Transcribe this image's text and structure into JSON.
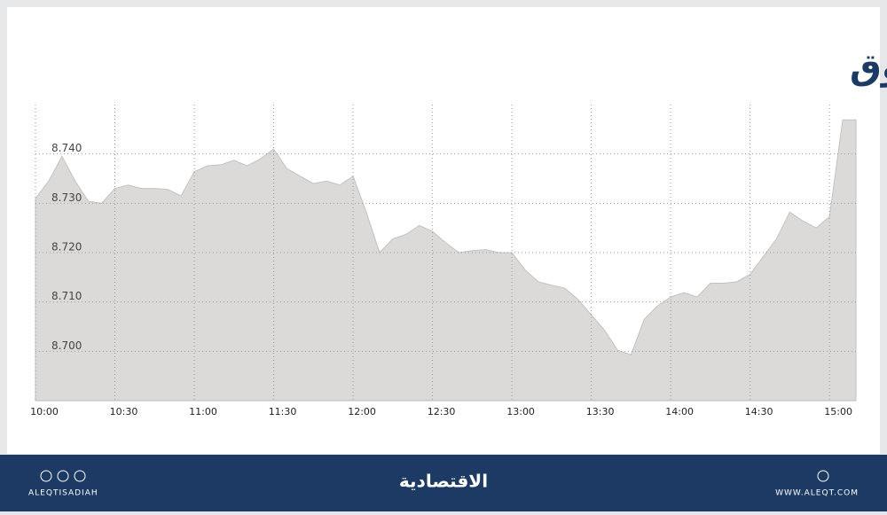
{
  "chart_data": {
    "type": "area",
    "title": "مؤشر السوق",
    "x": [
      "10:00",
      "10:05",
      "10:10",
      "10:15",
      "10:20",
      "10:25",
      "10:30",
      "10:35",
      "10:40",
      "10:45",
      "10:50",
      "10:55",
      "11:00",
      "11:05",
      "11:10",
      "11:15",
      "11:20",
      "11:25",
      "11:30",
      "11:35",
      "11:40",
      "11:45",
      "11:50",
      "11:55",
      "12:00",
      "12:05",
      "12:10",
      "12:15",
      "12:20",
      "12:25",
      "12:30",
      "12:35",
      "12:40",
      "12:45",
      "12:50",
      "12:55",
      "13:00",
      "13:05",
      "13:10",
      "13:15",
      "13:20",
      "13:25",
      "13:30",
      "13:35",
      "13:40",
      "13:45",
      "13:50",
      "13:55",
      "14:00",
      "14:05",
      "14:10",
      "14:15",
      "14:20",
      "14:25",
      "14:30",
      "14:35",
      "14:40",
      "14:45",
      "14:50",
      "14:55",
      "15:00",
      "15:05",
      "15:10"
    ],
    "values": [
      8.731,
      8.7345,
      8.7395,
      8.7345,
      8.7304,
      8.73,
      8.733,
      8.7337,
      8.733,
      8.733,
      8.7328,
      8.7315,
      8.7364,
      8.7376,
      8.7378,
      8.7387,
      8.7376,
      8.739,
      8.741,
      8.737,
      8.7355,
      8.734,
      8.7345,
      8.7337,
      8.7355,
      8.7282,
      8.72,
      8.7228,
      8.7237,
      8.7255,
      8.7243,
      8.722,
      8.72,
      8.7204,
      8.7206,
      8.72,
      8.72,
      8.7165,
      8.7141,
      8.7134,
      8.7128,
      8.7105,
      8.7074,
      8.7043,
      8.7002,
      8.6993,
      8.7065,
      8.7092,
      8.711,
      8.7119,
      8.711,
      8.7138,
      8.7138,
      8.7141,
      8.7156,
      8.7192,
      8.7228,
      8.7282,
      8.7264,
      8.725,
      8.7273,
      8.7469,
      8.7469
    ],
    "color": "#dcdad9",
    "xlim": [
      "10:00",
      "15:10"
    ],
    "xticks": [
      "10:00",
      "10:30",
      "11:00",
      "11:30",
      "12:00",
      "12:30",
      "13:00",
      "13:30",
      "14:00",
      "14:30",
      "15:00"
    ],
    "ylim": [
      8.69,
      8.75
    ],
    "yticks": [
      {
        "value": 8.74,
        "label": "8.740"
      },
      {
        "value": 8.73,
        "label": "8.730"
      },
      {
        "value": 8.72,
        "label": "8.720"
      },
      {
        "value": 8.71,
        "label": "8.710"
      },
      {
        "value": 8.7,
        "label": "8.700"
      }
    ],
    "grid": true
  },
  "footer": {
    "brand": "الاقتصادية",
    "left": "ALEQTISADIAH",
    "right": "WWW.ALEQT.COM"
  }
}
